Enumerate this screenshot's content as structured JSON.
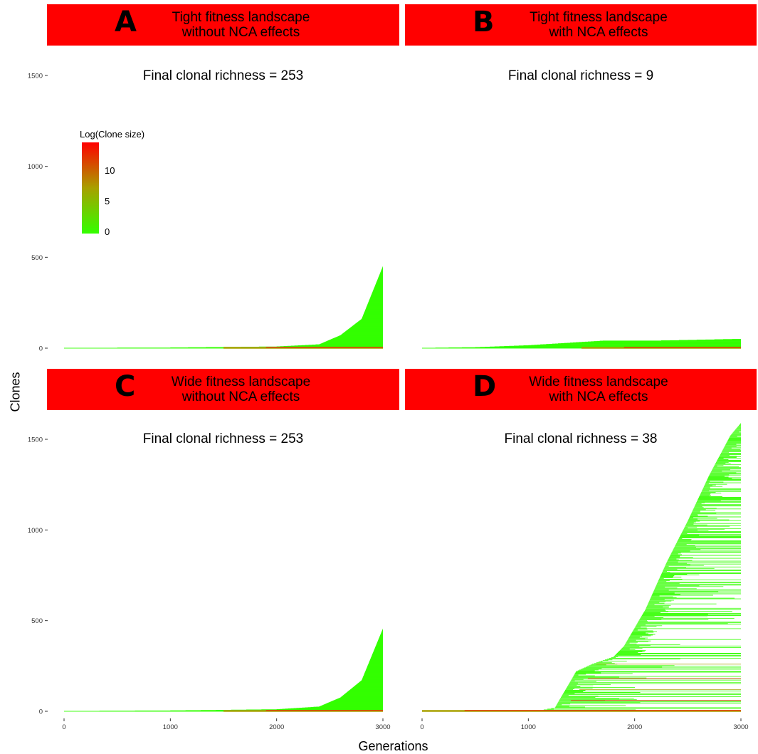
{
  "x_axis_title": "Generations",
  "y_axis_title": "Clones",
  "legend": {
    "title": "Log(Clone size)",
    "labels": [
      "0",
      "5",
      "10"
    ],
    "colors": {
      "low": "#33ff00",
      "mid": "#a8a000",
      "high": "#ff0000"
    }
  },
  "header_color": "#ff0000",
  "chart_data": [
    {
      "type": "line",
      "panel": "A",
      "title_line1": "Tight fitness landscape",
      "title_line2": "without NCA effects",
      "annotation": "Final clonal richness = 253",
      "xlim": [
        0,
        3000
      ],
      "ylim": [
        0,
        1500
      ],
      "x_ticks": [
        "0",
        "1000",
        "2000",
        "3000"
      ],
      "y_ticks": [
        "0",
        "500",
        "1000",
        "1500"
      ],
      "x_ticks_shown": false,
      "y_ticks_shown": true,
      "clone_front": {
        "x": [
          0,
          1000,
          2000,
          2400,
          2600,
          2800,
          3000
        ],
        "y": [
          0,
          2,
          8,
          20,
          70,
          160,
          450
        ]
      }
    },
    {
      "type": "line",
      "panel": "B",
      "title_line1": "Tight fitness landscape",
      "title_line2": "with NCA effects",
      "annotation": "Final clonal richness = 9",
      "xlim": [
        0,
        3000
      ],
      "ylim": [
        0,
        1500
      ],
      "x_ticks": [
        "0",
        "1000",
        "2000",
        "3000"
      ],
      "y_ticks": [
        "0",
        "500",
        "1000",
        "1500"
      ],
      "x_ticks_shown": false,
      "y_ticks_shown": false,
      "clone_front": {
        "x": [
          0,
          500,
          1000,
          1700,
          2000,
          3000
        ],
        "y": [
          0,
          4,
          15,
          40,
          38,
          50
        ]
      }
    },
    {
      "type": "line",
      "panel": "C",
      "title_line1": "Wide fitness landscape",
      "title_line2": "without NCA effects",
      "annotation": "Final clonal richness = 253",
      "xlim": [
        0,
        3000
      ],
      "ylim": [
        0,
        1500
      ],
      "x_ticks": [
        "0",
        "1000",
        "2000",
        "3000"
      ],
      "y_ticks": [
        "0",
        "500",
        "1000",
        "1500"
      ],
      "x_ticks_shown": true,
      "y_ticks_shown": true,
      "clone_front": {
        "x": [
          0,
          1000,
          2000,
          2400,
          2600,
          2800,
          3000
        ],
        "y": [
          0,
          3,
          10,
          25,
          75,
          170,
          455
        ]
      }
    },
    {
      "type": "line",
      "panel": "D",
      "title_line1": "Wide fitness landscape",
      "title_line2": "with NCA effects",
      "annotation": "Final clonal richness = 38",
      "xlim": [
        0,
        3000
      ],
      "ylim": [
        0,
        1500
      ],
      "x_ticks": [
        "0",
        "1000",
        "2000",
        "3000"
      ],
      "y_ticks": [
        "0",
        "500",
        "1000",
        "1500"
      ],
      "x_ticks_shown": true,
      "y_ticks_shown": false,
      "clone_front": {
        "x": [
          0,
          1100,
          1250,
          1350,
          1450,
          1600,
          1800,
          1900,
          2100,
          2300,
          2500,
          2700,
          2900,
          3000
        ],
        "y": [
          0,
          3,
          20,
          120,
          220,
          260,
          300,
          360,
          560,
          820,
          1050,
          1300,
          1520,
          1590
        ]
      }
    }
  ]
}
